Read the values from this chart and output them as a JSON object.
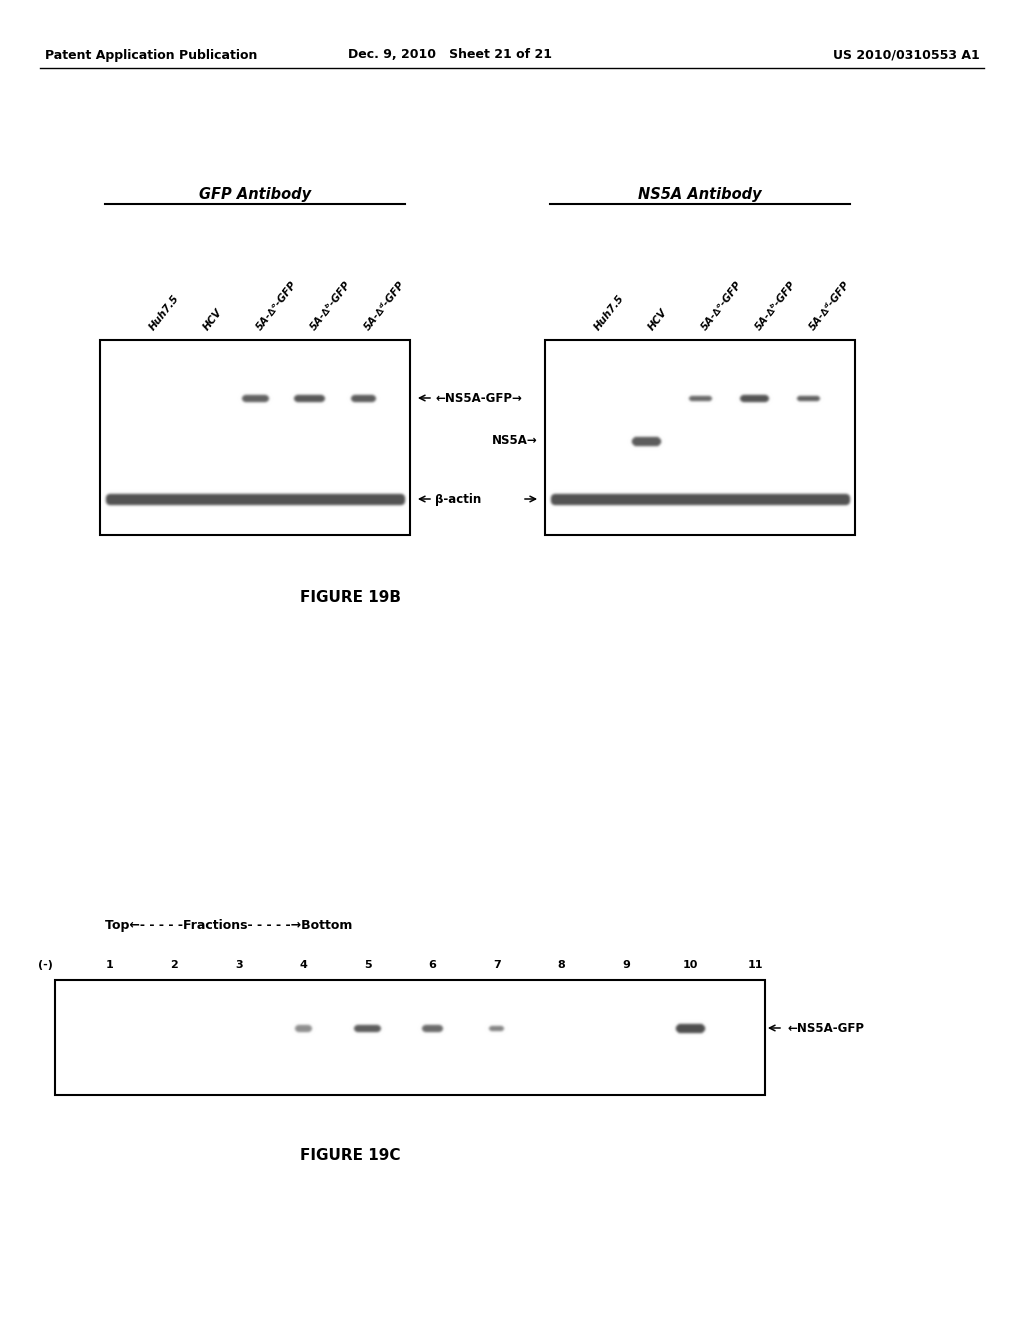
{
  "bg_color": "#f5f5f0",
  "page_header_left": "Patent Application Publication",
  "page_header_mid": "Dec. 9, 2010   Sheet 21 of 21",
  "page_header_right": "US 2010/0310553 A1",
  "fig19b_caption": "FIGURE 19B",
  "fig19c_caption": "FIGURE 19C",
  "panel1_title": "GFP Antibody",
  "panel2_title": "NS5A Antibody",
  "lane_labels": [
    "Huh7.5",
    "HCV",
    "5A-∆⁰-GFP",
    "5A-∆ᵇ-GFP",
    "5A-∆ᵈ-GFP"
  ],
  "fractions_header": "Top←- - - - -Fractions- - - - -→Bottom",
  "fraction_labels": [
    "(-)",
    "1",
    "2",
    "3",
    "4",
    "5",
    "6",
    "7",
    "8",
    "9",
    "10",
    "11"
  ]
}
